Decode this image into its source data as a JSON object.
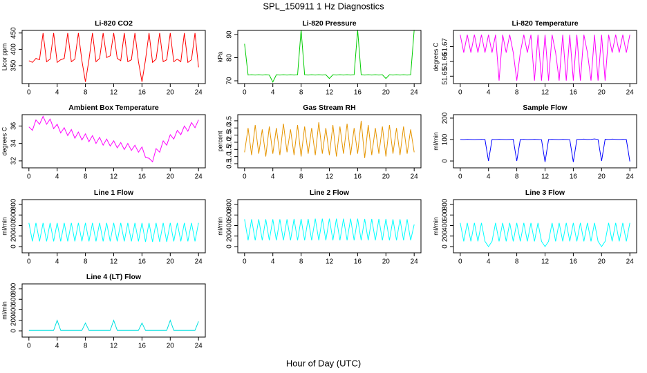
{
  "title": "SPL_150911  1 Hz Diagnostics",
  "x_label": "Hour of Day (UTC)",
  "chart_data": [
    {
      "type": "line",
      "title": "Li-820 CO2",
      "y_label": "Licor ppm",
      "color": "#ff0000",
      "x": [
        0,
        0.5,
        1,
        1.5,
        2,
        2.5,
        3,
        3.5,
        4,
        4.5,
        5,
        5.5,
        6,
        6.5,
        7,
        7.5,
        8,
        8.5,
        9,
        9.5,
        10,
        10.5,
        11,
        11.5,
        12,
        12.5,
        13,
        13.5,
        14,
        14.5,
        15,
        15.5,
        16,
        16.5,
        17,
        17.5,
        18,
        18.5,
        19,
        19.5,
        20,
        20.5,
        21,
        21.5,
        22,
        22.5,
        23,
        23.5,
        24
      ],
      "values": [
        365,
        360,
        372,
        368,
        450,
        362,
        370,
        450,
        360,
        368,
        372,
        450,
        362,
        370,
        450,
        365,
        300,
        368,
        450,
        362,
        372,
        450,
        375,
        380,
        450,
        372,
        365,
        450,
        362,
        368,
        450,
        362,
        300,
        368,
        450,
        360,
        370,
        450,
        362,
        368,
        450,
        362,
        370,
        362,
        450,
        360,
        368,
        450,
        345
      ],
      "xlim": [
        -0.96,
        24.96
      ],
      "xticks": [
        0,
        4,
        8,
        12,
        16,
        20,
        24
      ],
      "ylim": [
        295,
        458
      ],
      "yticks": [
        350,
        400,
        450
      ]
    },
    {
      "type": "line",
      "title": "Li-820 Pressure",
      "y_label": "kPa",
      "color": "#00cc00",
      "x": [
        0,
        0.5,
        1,
        1.5,
        2,
        2.5,
        3,
        3.5,
        4,
        4.5,
        5,
        5.5,
        6,
        6.5,
        7,
        7.5,
        8,
        8.5,
        9,
        9.5,
        10,
        10.5,
        11,
        11.5,
        12,
        12.5,
        13,
        13.5,
        14,
        14.5,
        15,
        15.5,
        16,
        16.5,
        17,
        17.5,
        18,
        18.5,
        19,
        19.5,
        20,
        20.5,
        21,
        21.5,
        22,
        22.5,
        23,
        23.5,
        24
      ],
      "values": [
        86,
        72.5,
        72.6,
        72.5,
        72.6,
        72.5,
        72.6,
        72.5,
        69.5,
        72.6,
        72.5,
        72.6,
        72.5,
        72.6,
        72.5,
        72.6,
        92,
        72.6,
        72.5,
        72.6,
        72.5,
        72.6,
        72.5,
        72.6,
        71,
        72.6,
        72.5,
        72.6,
        72.5,
        72.6,
        72.5,
        72.6,
        92,
        72.6,
        72.5,
        72.6,
        72.5,
        72.6,
        72.5,
        72.6,
        71,
        72.6,
        72.5,
        72.6,
        72.5,
        72.6,
        72.5,
        72.6,
        92
      ],
      "xlim": [
        -0.96,
        24.96
      ],
      "xticks": [
        0,
        4,
        8,
        12,
        16,
        20,
        24
      ],
      "ylim": [
        68.8,
        91.8
      ],
      "yticks": [
        70,
        80,
        90
      ]
    },
    {
      "type": "line",
      "title": "Li-820 Temperature",
      "y_label": "degrees C",
      "color": "#ff00ff",
      "x": [
        0,
        0.5,
        1,
        1.5,
        2,
        2.5,
        3,
        3.5,
        4,
        4.5,
        5,
        5.5,
        6,
        6.5,
        7,
        7.5,
        8,
        8.5,
        9,
        9.5,
        10,
        10.5,
        11,
        11.5,
        12,
        12.5,
        13,
        13.5,
        14,
        14.5,
        15,
        15.5,
        16,
        16.5,
        17,
        17.5,
        18,
        18.5,
        19,
        19.5,
        20,
        20.5,
        21,
        21.5,
        22,
        22.5,
        23,
        23.5,
        24
      ],
      "values": [
        51.678,
        51.666,
        51.678,
        51.666,
        51.678,
        51.666,
        51.678,
        51.666,
        51.678,
        51.666,
        51.678,
        51.647,
        51.678,
        51.666,
        51.678,
        51.666,
        51.647,
        51.666,
        51.678,
        51.666,
        51.678,
        51.647,
        51.678,
        51.647,
        51.678,
        51.647,
        51.678,
        51.666,
        51.647,
        51.678,
        51.647,
        51.678,
        51.647,
        51.678,
        51.647,
        51.678,
        51.666,
        51.647,
        51.678,
        51.647,
        51.678,
        51.647,
        51.678,
        51.666,
        51.678,
        51.666,
        51.678,
        51.666,
        51.678
      ],
      "xlim": [
        -0.96,
        24.96
      ],
      "xticks": [
        0,
        4,
        8,
        12,
        16,
        20,
        24
      ],
      "ylim": [
        51.645,
        51.681
      ],
      "yticks": [
        51.65,
        51.66,
        51.67
      ]
    },
    {
      "type": "line",
      "title": "Ambient Box Temperature",
      "y_label": "degrees C",
      "color": "#ff00ff",
      "x": [
        0,
        0.5,
        1,
        1.5,
        2,
        2.5,
        3,
        3.5,
        4,
        4.5,
        5,
        5.5,
        6,
        6.5,
        7,
        7.5,
        8,
        8.5,
        9,
        9.5,
        10,
        10.5,
        11,
        11.5,
        12,
        12.5,
        13,
        13.5,
        14,
        14.5,
        15,
        15.5,
        16,
        16.5,
        17,
        17.5,
        18,
        18.5,
        19,
        19.5,
        20,
        20.5,
        21,
        21.5,
        22,
        22.5,
        23,
        23.5,
        24
      ],
      "values": [
        35.9,
        35.5,
        36.7,
        36.2,
        37.1,
        36.2,
        36.8,
        35.7,
        36.2,
        35.2,
        35.8,
        34.9,
        35.6,
        34.6,
        35.3,
        34.4,
        35.1,
        34.2,
        34.9,
        34.0,
        34.7,
        33.8,
        34.5,
        33.7,
        34.3,
        33.5,
        34.1,
        33.3,
        34.0,
        33.2,
        33.8,
        33.0,
        33.6,
        32.4,
        32.3,
        31.9,
        33.4,
        33.0,
        34.3,
        33.8,
        35.0,
        34.5,
        35.5,
        35.0,
        36.0,
        35.4,
        36.4,
        35.8,
        36.7
      ],
      "xlim": [
        -0.96,
        24.96
      ],
      "xticks": [
        0,
        4,
        8,
        12,
        16,
        20,
        24
      ],
      "ylim": [
        31.2,
        37.3
      ],
      "yticks": [
        32,
        34,
        36
      ]
    },
    {
      "type": "line",
      "title": "Gas Stream RH",
      "y_label": "percent",
      "color": "#e69500",
      "x": [
        0,
        0.5,
        1,
        1.5,
        2,
        2.5,
        3,
        3.5,
        4,
        4.5,
        5,
        5.5,
        6,
        6.5,
        7,
        7.5,
        8,
        8.5,
        9,
        9.5,
        10,
        10.5,
        11,
        11.5,
        12,
        12.5,
        13,
        13.5,
        14,
        14.5,
        15,
        15.5,
        16,
        16.5,
        17,
        17.5,
        18,
        18.5,
        19,
        19.5,
        20,
        20.5,
        21,
        21.5,
        22,
        22.5,
        23,
        23.5,
        24
      ],
      "values": [
        1.3,
        3.0,
        1.1,
        3.2,
        1.2,
        2.9,
        1.0,
        3.1,
        1.2,
        3.0,
        1.1,
        3.3,
        1.3,
        2.9,
        1.1,
        3.2,
        1.0,
        3.1,
        1.2,
        3.0,
        1.1,
        3.4,
        1.2,
        3.0,
        1.1,
        3.2,
        1.0,
        3.1,
        1.2,
        3.3,
        1.1,
        3.0,
        1.2,
        3.5,
        0.9,
        3.2,
        1.1,
        3.0,
        1.2,
        3.1,
        1.0,
        3.2,
        1.2,
        3.0,
        1.1,
        3.1,
        1.2,
        2.9,
        1.3
      ],
      "xlim": [
        -0.96,
        24.96
      ],
      "xticks": [
        0,
        4,
        8,
        12,
        16,
        20,
        24
      ],
      "ylim": [
        0.21,
        3.93
      ],
      "yticks": [
        0.5,
        {
          "value": 1,
          "label": "1.0"
        },
        1.5,
        {
          "value": 2,
          "label": "2.0"
        },
        2.5,
        {
          "value": 3,
          "label": "3.0"
        },
        3.5
      ]
    },
    {
      "type": "line",
      "title": "Sample Flow",
      "y_label": "ml/min",
      "color": "#0000ff",
      "x": [
        0,
        0.5,
        1,
        1.5,
        2,
        2.5,
        3,
        3.5,
        4,
        4.5,
        5,
        5.5,
        6,
        6.5,
        7,
        7.5,
        8,
        8.5,
        9,
        9.5,
        10,
        10.5,
        11,
        11.5,
        12,
        12.5,
        13,
        13.5,
        14,
        14.5,
        15,
        15.5,
        16,
        16.5,
        17,
        17.5,
        18,
        18.5,
        19,
        19.5,
        20,
        20.5,
        21,
        21.5,
        22,
        22.5,
        23,
        23.5,
        24
      ],
      "values": [
        100,
        99,
        101,
        100,
        99,
        100,
        101,
        100,
        0,
        100,
        99,
        101,
        100,
        99,
        100,
        101,
        0,
        100,
        101,
        99,
        100,
        101,
        100,
        99,
        -5,
        100,
        101,
        100,
        99,
        101,
        100,
        99,
        -5,
        100,
        101,
        102,
        100,
        101,
        103,
        100,
        0,
        101,
        100,
        102,
        101,
        100,
        101,
        100,
        -2
      ],
      "xlim": [
        -0.96,
        24.96
      ],
      "xticks": [
        0,
        4,
        8,
        12,
        16,
        20,
        24
      ],
      "ylim": [
        -32,
        216
      ],
      "yticks": [
        0,
        100,
        200
      ]
    },
    {
      "type": "line",
      "title": "Line 1 Flow",
      "y_label": "ml/min",
      "color": "#00ffff",
      "x": [
        0,
        0.5,
        1,
        1.5,
        2,
        2.5,
        3,
        3.5,
        4,
        4.5,
        5,
        5.5,
        6,
        6.5,
        7,
        7.5,
        8,
        8.5,
        9,
        9.5,
        10,
        10.5,
        11,
        11.5,
        12,
        12.5,
        13,
        13.5,
        14,
        14.5,
        15,
        15.5,
        16,
        16.5,
        17,
        17.5,
        18,
        18.5,
        19,
        19.5,
        20,
        20.5,
        21,
        21.5,
        22,
        22.5,
        23,
        23.5,
        24
      ],
      "values": [
        450,
        100,
        450,
        100,
        450,
        100,
        450,
        100,
        450,
        100,
        450,
        100,
        450,
        100,
        450,
        100,
        450,
        100,
        450,
        100,
        450,
        100,
        450,
        100,
        450,
        100,
        450,
        100,
        450,
        100,
        450,
        100,
        450,
        90,
        450,
        90,
        450,
        90,
        450,
        90,
        450,
        100,
        450,
        100,
        450,
        100,
        450,
        100,
        450
      ],
      "xlim": [
        -0.96,
        24.96
      ],
      "xticks": [
        0,
        4,
        8,
        12,
        16,
        20,
        24
      ],
      "ylim": [
        -118,
        892
      ],
      "yticks": [
        0,
        200,
        400,
        600,
        800
      ]
    },
    {
      "type": "line",
      "title": "Line 2 Flow",
      "y_label": "ml/min",
      "color": "#00ffff",
      "x": [
        0,
        0.5,
        1,
        1.5,
        2,
        2.5,
        3,
        3.5,
        4,
        4.5,
        5,
        5.5,
        6,
        6.5,
        7,
        7.5,
        8,
        8.5,
        9,
        9.5,
        10,
        10.5,
        11,
        11.5,
        12,
        12.5,
        13,
        13.5,
        14,
        14.5,
        15,
        15.5,
        16,
        16.5,
        17,
        17.5,
        18,
        18.5,
        19,
        19.5,
        20,
        20.5,
        21,
        21.5,
        22,
        22.5,
        23,
        23.5,
        24
      ],
      "values": [
        520,
        120,
        520,
        120,
        520,
        120,
        520,
        120,
        520,
        120,
        520,
        120,
        520,
        120,
        525,
        120,
        525,
        120,
        525,
        120,
        530,
        120,
        530,
        120,
        530,
        120,
        530,
        120,
        530,
        120,
        530,
        120,
        530,
        120,
        525,
        120,
        525,
        120,
        525,
        120,
        525,
        120,
        520,
        120,
        520,
        120,
        520,
        120,
        420
      ],
      "xlim": [
        -0.96,
        24.96
      ],
      "xticks": [
        0,
        4,
        8,
        12,
        16,
        20,
        24
      ],
      "ylim": [
        -118,
        892
      ],
      "yticks": [
        0,
        200,
        400,
        600,
        800
      ]
    },
    {
      "type": "line",
      "title": "Line 3 Flow",
      "y_label": "ml/min",
      "color": "#00ffff",
      "x": [
        0,
        0.5,
        1,
        1.5,
        2,
        2.5,
        3,
        3.5,
        4,
        4.5,
        5,
        5.5,
        6,
        6.5,
        7,
        7.5,
        8,
        8.5,
        9,
        9.5,
        10,
        10.5,
        11,
        11.5,
        12,
        12.5,
        13,
        13.5,
        14,
        14.5,
        15,
        15.5,
        16,
        16.5,
        17,
        17.5,
        18,
        18.5,
        19,
        19.5,
        20,
        20.5,
        21,
        21.5,
        22,
        22.5,
        23,
        23.5,
        24
      ],
      "values": [
        450,
        100,
        450,
        100,
        450,
        100,
        450,
        100,
        0,
        100,
        450,
        100,
        450,
        100,
        450,
        100,
        450,
        100,
        450,
        100,
        450,
        100,
        450,
        100,
        0,
        100,
        450,
        100,
        450,
        100,
        450,
        100,
        450,
        100,
        450,
        100,
        450,
        100,
        450,
        100,
        0,
        100,
        450,
        100,
        450,
        100,
        450,
        100,
        450
      ],
      "xlim": [
        -0.96,
        24.96
      ],
      "xticks": [
        0,
        4,
        8,
        12,
        16,
        20,
        24
      ],
      "ylim": [
        -118,
        892
      ],
      "yticks": [
        0,
        200,
        400,
        600,
        800
      ]
    },
    {
      "type": "line",
      "title": "Line 4 (LT) Flow",
      "y_label": "ml/min",
      "color": "#00e0e0",
      "x": [
        0,
        0.5,
        1,
        1.5,
        2,
        2.5,
        3,
        3.5,
        4,
        4.5,
        5,
        5.5,
        6,
        6.5,
        7,
        7.5,
        8,
        8.5,
        9,
        9.5,
        10,
        10.5,
        11,
        11.5,
        12,
        12.5,
        13,
        13.5,
        14,
        14.5,
        15,
        15.5,
        16,
        16.5,
        17,
        17.5,
        18,
        18.5,
        19,
        19.5,
        20,
        20.5,
        21,
        21.5,
        22,
        22.5,
        23,
        23.5,
        24
      ],
      "values": [
        10,
        10,
        10,
        10,
        10,
        10,
        10,
        10,
        200,
        10,
        10,
        10,
        10,
        10,
        10,
        10,
        150,
        10,
        10,
        10,
        10,
        10,
        10,
        10,
        200,
        10,
        10,
        10,
        10,
        10,
        10,
        10,
        150,
        10,
        10,
        10,
        10,
        10,
        10,
        10,
        200,
        10,
        10,
        10,
        10,
        10,
        10,
        10,
        180
      ],
      "xlim": [
        -0.96,
        24.96
      ],
      "xticks": [
        0,
        4,
        8,
        12,
        16,
        20,
        24
      ],
      "ylim": [
        -118,
        892
      ],
      "yticks": [
        0,
        200,
        400,
        600,
        800
      ]
    }
  ]
}
